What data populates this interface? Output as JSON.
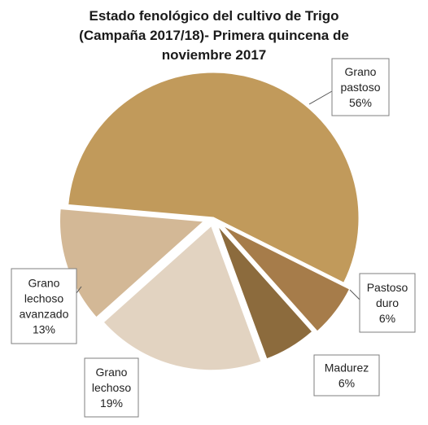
{
  "chart_data": {
    "type": "pie",
    "title_lines": [
      "Estado fenológico del cultivo de Trigo",
      "(Campaña 2017/18)- Primera quincena de",
      "noviembre 2017"
    ],
    "legend": "none",
    "slices": [
      {
        "name_lines": [
          "Grano",
          "pastoso"
        ],
        "value": 56,
        "value_label": "56%",
        "color": "#c19a5b"
      },
      {
        "name_lines": [
          "Pastoso",
          "duro"
        ],
        "value": 6,
        "value_label": "6%",
        "color": "#a67c4a"
      },
      {
        "name_lines": [
          "Madurez"
        ],
        "value": 6,
        "value_label": "6%",
        "color": "#8c6b3d"
      },
      {
        "name_lines": [
          "Grano",
          "lechoso"
        ],
        "value": 19,
        "value_label": "19%",
        "color": "#e2d3c1"
      },
      {
        "name_lines": [
          "Grano",
          "lechoso",
          "avanzado"
        ],
        "value": 13,
        "value_label": "13%",
        "color": "#d3b896"
      }
    ]
  }
}
